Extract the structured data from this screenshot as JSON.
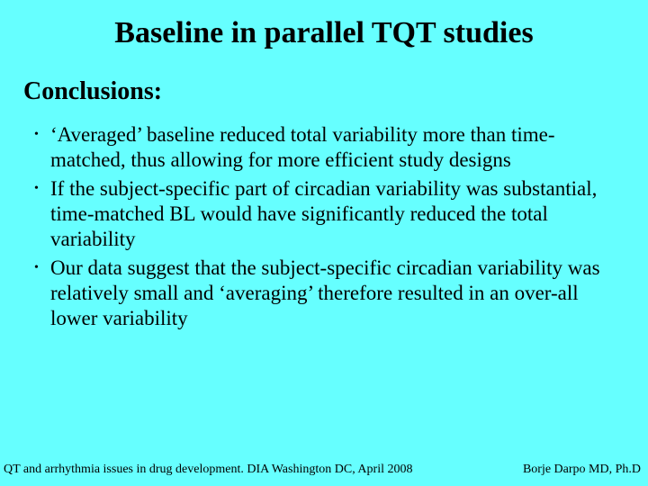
{
  "background_color": "#66ffff",
  "text_color": "#000000",
  "font_family": "Times New Roman",
  "title": {
    "text": "Baseline in parallel TQT studies",
    "fontsize": 34,
    "weight": "bold"
  },
  "subtitle": {
    "text": "Conclusions:",
    "fontsize": 28,
    "weight": "bold"
  },
  "bullets": {
    "marker": "•",
    "marker_fontsize": 14,
    "text_fontsize": 23,
    "line_height": 1.22,
    "items": [
      "‘Averaged’ baseline reduced total variability more than time-matched, thus allowing for more efficient study designs",
      "If the subject-specific part of circadian variability was substantial, time-matched BL would have significantly reduced the total variability",
      "Our data suggest that the subject-specific circadian variability was relatively small and ‘averaging’ therefore resulted in an over-all lower variability"
    ]
  },
  "footer": {
    "left": "QT and arrhythmia issues in drug development. DIA Washington DC, April 2008",
    "right": "Borje Darpo MD, Ph.D",
    "fontsize": 14
  }
}
